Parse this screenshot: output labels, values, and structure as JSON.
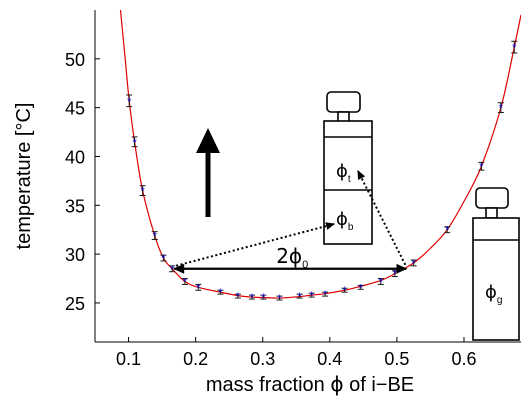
{
  "chart_data": {
    "type": "scatter",
    "xlabel_prefix": "mass fraction ",
    "xlabel_symbol": "ϕ",
    "xlabel_suffix": " of i−BE",
    "ylabel": "temperature [°C]",
    "xlim": [
      0.05,
      0.685
    ],
    "ylim": [
      21,
      55
    ],
    "xticks": [
      "0.1",
      "0.2",
      "0.3",
      "0.4",
      "0.5",
      "0.6"
    ],
    "xtick_values": [
      0.1,
      0.2,
      0.3,
      0.4,
      0.5,
      0.6
    ],
    "yticks": [
      "25",
      "30",
      "35",
      "40",
      "45",
      "50"
    ],
    "ytick_values": [
      25,
      30,
      35,
      40,
      45,
      50
    ],
    "grid": false,
    "series": [
      {
        "points": [
          {
            "x": 0.101,
            "y": 45.7,
            "err": 0.6
          },
          {
            "x": 0.109,
            "y": 41.5,
            "err": 0.5
          },
          {
            "x": 0.121,
            "y": 36.5,
            "err": 0.5
          },
          {
            "x": 0.139,
            "y": 31.9,
            "err": 0.4
          },
          {
            "x": 0.152,
            "y": 29.6,
            "err": 0.3
          },
          {
            "x": 0.165,
            "y": 28.5,
            "err": 0.3
          },
          {
            "x": 0.184,
            "y": 27.2,
            "err": 0.3
          },
          {
            "x": 0.204,
            "y": 26.6,
            "err": 0.3
          },
          {
            "x": 0.237,
            "y": 26.1,
            "err": 0.2
          },
          {
            "x": 0.263,
            "y": 25.7,
            "err": 0.2
          },
          {
            "x": 0.284,
            "y": 25.6,
            "err": 0.2
          },
          {
            "x": 0.301,
            "y": 25.6,
            "err": 0.2
          },
          {
            "x": 0.325,
            "y": 25.5,
            "err": 0.2
          },
          {
            "x": 0.355,
            "y": 25.7,
            "err": 0.2
          },
          {
            "x": 0.373,
            "y": 25.8,
            "err": 0.2
          },
          {
            "x": 0.393,
            "y": 25.9,
            "err": 0.2
          },
          {
            "x": 0.422,
            "y": 26.3,
            "err": 0.2
          },
          {
            "x": 0.446,
            "y": 26.6,
            "err": 0.2
          },
          {
            "x": 0.476,
            "y": 27.2,
            "err": 0.3
          },
          {
            "x": 0.497,
            "y": 28.0,
            "err": 0.3
          },
          {
            "x": 0.525,
            "y": 29.1,
            "err": 0.3
          },
          {
            "x": 0.575,
            "y": 32.5,
            "err": 0.3
          },
          {
            "x": 0.626,
            "y": 39.0,
            "err": 0.4
          },
          {
            "x": 0.655,
            "y": 45.0,
            "err": 0.5
          },
          {
            "x": 0.675,
            "y": 51.2,
            "err": 0.6
          }
        ]
      }
    ],
    "fit_curve": [
      [
        0.088,
        55.0
      ],
      [
        0.095,
        50.0
      ],
      [
        0.101,
        45.7
      ],
      [
        0.109,
        41.5
      ],
      [
        0.121,
        36.5
      ],
      [
        0.139,
        31.9
      ],
      [
        0.152,
        29.6
      ],
      [
        0.165,
        28.5
      ],
      [
        0.184,
        27.2
      ],
      [
        0.204,
        26.6
      ],
      [
        0.237,
        26.1
      ],
      [
        0.263,
        25.75
      ],
      [
        0.284,
        25.6
      ],
      [
        0.301,
        25.55
      ],
      [
        0.325,
        25.5
      ],
      [
        0.355,
        25.65
      ],
      [
        0.373,
        25.8
      ],
      [
        0.393,
        25.95
      ],
      [
        0.422,
        26.3
      ],
      [
        0.446,
        26.7
      ],
      [
        0.476,
        27.3
      ],
      [
        0.497,
        28.0
      ],
      [
        0.525,
        29.1
      ],
      [
        0.55,
        30.6
      ],
      [
        0.575,
        32.5
      ],
      [
        0.6,
        35.4
      ],
      [
        0.626,
        39.0
      ],
      [
        0.655,
        45.0
      ],
      [
        0.675,
        51.2
      ],
      [
        0.685,
        54.5
      ]
    ],
    "tie_line": {
      "x1": 0.165,
      "x2": 0.517,
      "y": 28.5
    },
    "tie_label_main": "2ϕ",
    "tie_label_sub": "0",
    "phase_top_main": "ϕ",
    "phase_top_sub": "t",
    "phase_bottom_main": "ϕ",
    "phase_bottom_sub": "b",
    "phase_single_main": "ϕ",
    "phase_single_sub": "g",
    "colors": {
      "fit": "#e00000",
      "errorbar": "#1a1a1a",
      "marker": "#0000cc",
      "axes": "#000000"
    }
  }
}
